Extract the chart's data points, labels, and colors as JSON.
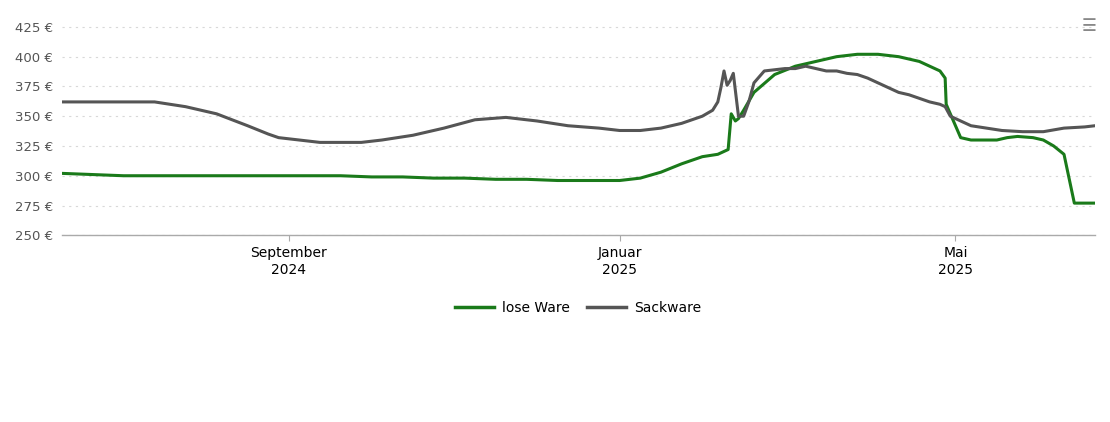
{
  "ylim": [
    250,
    435
  ],
  "yticks": [
    250,
    275,
    300,
    325,
    350,
    375,
    400,
    425
  ],
  "ytick_labels": [
    "250 €",
    "275 €",
    "300 €",
    "325 €",
    "350 €",
    "375 €",
    "400 €",
    "425 €"
  ],
  "xtick_positions": [
    0.22,
    0.54,
    0.865
  ],
  "xtick_labels": [
    "September\n2024",
    "Januar\n2025",
    "Mai\n2025"
  ],
  "lose_ware_color": "#1a7a1a",
  "sackware_color": "#555555",
  "background_color": "#ffffff",
  "grid_color": "#d8d8d8",
  "legend_labels": [
    "lose Ware",
    "Sackware"
  ],
  "lose_ware_x": [
    0.0,
    0.03,
    0.06,
    0.09,
    0.12,
    0.15,
    0.18,
    0.21,
    0.24,
    0.27,
    0.3,
    0.33,
    0.36,
    0.39,
    0.42,
    0.45,
    0.48,
    0.51,
    0.54,
    0.56,
    0.58,
    0.6,
    0.62,
    0.635,
    0.645,
    0.648,
    0.652,
    0.655,
    0.66,
    0.67,
    0.69,
    0.71,
    0.73,
    0.75,
    0.77,
    0.79,
    0.81,
    0.83,
    0.84,
    0.85,
    0.855,
    0.856,
    0.87,
    0.88,
    0.895,
    0.905,
    0.915,
    0.925,
    0.94,
    0.95,
    0.96,
    0.97,
    0.98,
    0.99,
    1.0
  ],
  "lose_ware_y": [
    302,
    301,
    300,
    300,
    300,
    300,
    300,
    300,
    300,
    300,
    299,
    299,
    298,
    298,
    297,
    297,
    296,
    296,
    296,
    298,
    303,
    310,
    316,
    318,
    322,
    352,
    346,
    348,
    355,
    370,
    385,
    392,
    396,
    400,
    402,
    402,
    400,
    396,
    392,
    388,
    382,
    360,
    332,
    330,
    330,
    330,
    332,
    333,
    332,
    330,
    325,
    318,
    277,
    277,
    277
  ],
  "sackware_x": [
    0.0,
    0.03,
    0.06,
    0.09,
    0.12,
    0.15,
    0.18,
    0.2,
    0.21,
    0.23,
    0.25,
    0.27,
    0.29,
    0.31,
    0.34,
    0.37,
    0.4,
    0.43,
    0.46,
    0.49,
    0.52,
    0.54,
    0.56,
    0.58,
    0.6,
    0.62,
    0.63,
    0.635,
    0.638,
    0.641,
    0.644,
    0.647,
    0.65,
    0.655,
    0.66,
    0.665,
    0.67,
    0.68,
    0.7,
    0.71,
    0.72,
    0.73,
    0.74,
    0.75,
    0.76,
    0.77,
    0.78,
    0.79,
    0.8,
    0.81,
    0.82,
    0.83,
    0.84,
    0.85,
    0.855,
    0.86,
    0.87,
    0.88,
    0.895,
    0.91,
    0.93,
    0.95,
    0.97,
    0.99,
    1.0
  ],
  "sackware_y": [
    362,
    362,
    362,
    362,
    358,
    352,
    342,
    335,
    332,
    330,
    328,
    328,
    328,
    330,
    334,
    340,
    347,
    349,
    346,
    342,
    340,
    338,
    338,
    340,
    344,
    350,
    355,
    362,
    374,
    388,
    376,
    380,
    386,
    350,
    350,
    362,
    378,
    388,
    390,
    390,
    392,
    390,
    388,
    388,
    386,
    385,
    382,
    378,
    374,
    370,
    368,
    365,
    362,
    360,
    358,
    350,
    346,
    342,
    340,
    338,
    337,
    337,
    340,
    341,
    342
  ]
}
